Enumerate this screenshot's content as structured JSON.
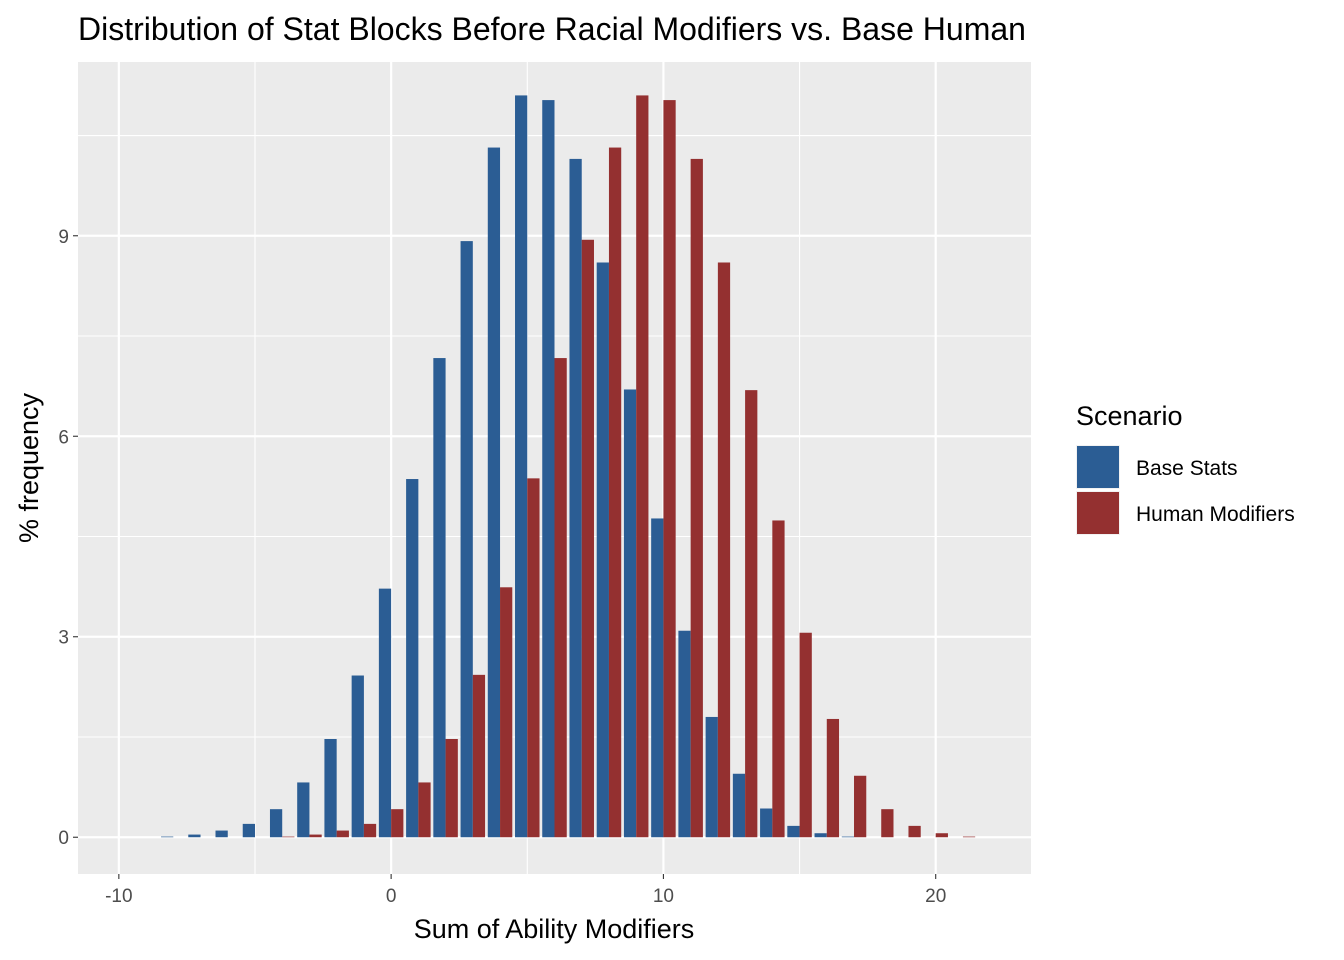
{
  "chart_data": {
    "type": "bar",
    "title": "Distribution of Stat Blocks Before Racial Modifiers vs. Base Human",
    "xlabel": "Sum of Ability Modifiers",
    "ylabel": "% frequency",
    "xlim": [
      -11.5,
      23.5
    ],
    "ylim": [
      -0.55,
      11.6
    ],
    "x_ticks": [
      -10,
      0,
      10,
      20
    ],
    "x_tick_labels": [
      "-10",
      "0",
      "10",
      "20"
    ],
    "y_ticks": [
      0,
      3,
      6,
      9
    ],
    "y_tick_labels": [
      "0",
      "3",
      "6",
      "9"
    ],
    "grid": true,
    "legend": {
      "title": "Scenario",
      "position": "right"
    },
    "x": [
      -10,
      -9,
      -8,
      -7,
      -6,
      -5,
      -4,
      -3,
      -2,
      -1,
      0,
      1,
      2,
      3,
      4,
      5,
      6,
      7,
      8,
      9,
      10,
      11,
      12,
      13,
      14,
      15,
      16,
      17,
      18,
      19,
      20,
      21
    ],
    "series": [
      {
        "name": "Base Stats",
        "color": "#2B5D94",
        "values": [
          0.0,
          0.0,
          0.01,
          0.04,
          0.1,
          0.2,
          0.42,
          0.82,
          1.47,
          2.42,
          3.72,
          5.36,
          7.17,
          8.92,
          10.32,
          11.1,
          11.03,
          10.15,
          8.6,
          6.7,
          4.77,
          3.09,
          1.8,
          0.95,
          0.43,
          0.17,
          0.06,
          0.01,
          0.0,
          0.0,
          0.0,
          0.0
        ]
      },
      {
        "name": "Human Modifiers",
        "color": "#943030",
        "values": [
          0.0,
          0.0,
          0.0,
          0.0,
          0.0,
          0.0,
          0.01,
          0.04,
          0.1,
          0.2,
          0.42,
          0.82,
          1.47,
          2.43,
          3.74,
          5.37,
          7.17,
          8.94,
          10.32,
          11.1,
          11.03,
          10.15,
          8.6,
          6.69,
          4.74,
          3.06,
          1.77,
          0.92,
          0.42,
          0.17,
          0.06,
          0.01
        ]
      }
    ]
  }
}
